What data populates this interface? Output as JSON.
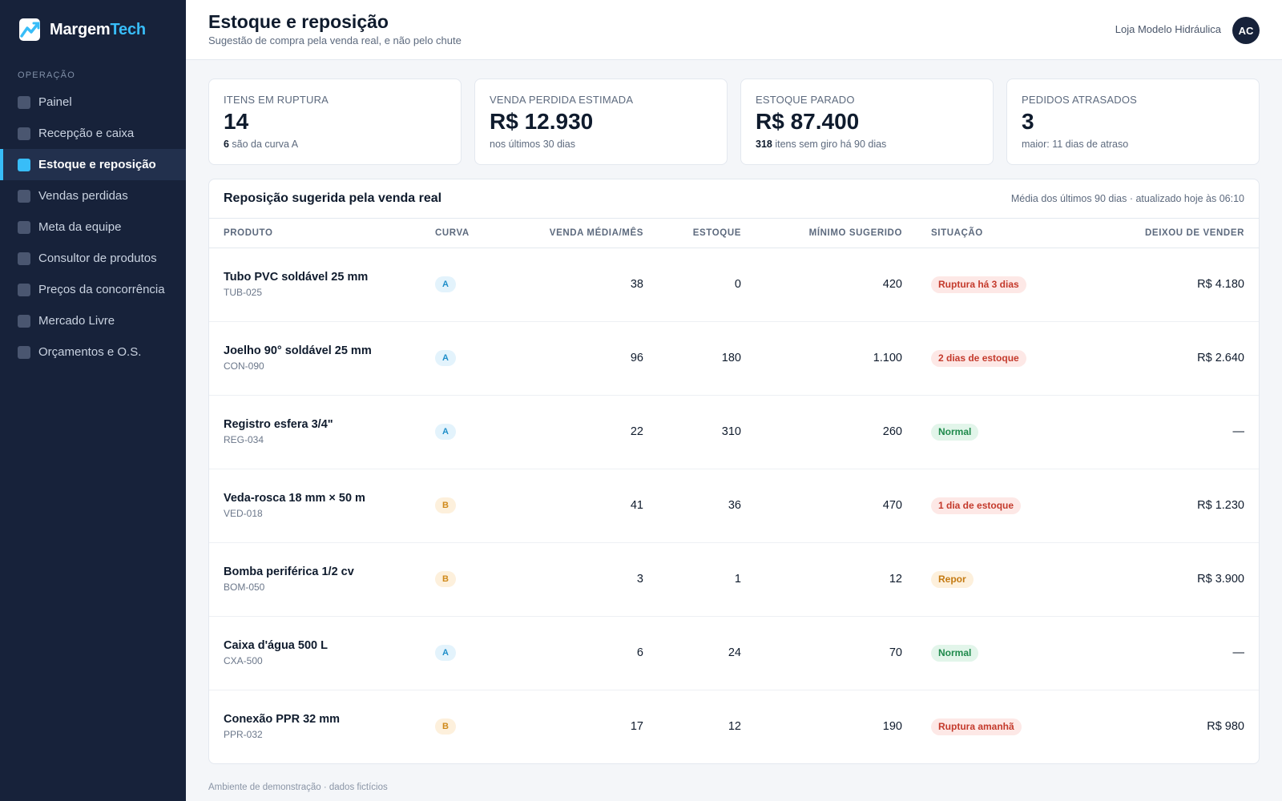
{
  "brand": {
    "name_part1": "Margem",
    "name_part2": "Tech"
  },
  "sidebar": {
    "section": "OPERAÇÃO",
    "items": [
      {
        "label": "Painel",
        "active": false
      },
      {
        "label": "Recepção e caixa",
        "active": false
      },
      {
        "label": "Estoque e reposição",
        "active": true
      },
      {
        "label": "Vendas perdidas",
        "active": false
      },
      {
        "label": "Meta da equipe",
        "active": false
      },
      {
        "label": "Consultor de produtos",
        "active": false
      },
      {
        "label": "Preços da concorrência",
        "active": false
      },
      {
        "label": "Mercado Livre",
        "active": false
      },
      {
        "label": "Orçamentos e O.S.",
        "active": false
      }
    ]
  },
  "header": {
    "title": "Estoque e reposição",
    "subtitle": "Sugestão de compra pela venda real, e não pelo chute",
    "store": "Loja Modelo Hidráulica",
    "avatar": "AC"
  },
  "kpis": [
    {
      "label": "ITENS EM RUPTURA",
      "value": "14",
      "sub_strong": "6",
      "sub": " são da curva A"
    },
    {
      "label": "VENDA PERDIDA ESTIMADA",
      "value": "R$ 12.930",
      "sub_strong": "",
      "sub": "nos últimos 30 dias"
    },
    {
      "label": "ESTOQUE PARADO",
      "value": "R$ 87.400",
      "sub_strong": "318",
      "sub": " itens sem giro há 90 dias"
    },
    {
      "label": "PEDIDOS ATRASADOS",
      "value": "3",
      "sub_strong": "",
      "sub": "maior: 11 dias de atraso"
    }
  ],
  "table": {
    "title": "Reposição sugerida pela venda real",
    "meta": "Média dos últimos 90 dias · atualizado hoje às 06:10",
    "columns": [
      "PRODUTO",
      "CURVA",
      "VENDA MÉDIA/MÊS",
      "ESTOQUE",
      "MÍNIMO SUGERIDO",
      "SITUAÇÃO",
      "DEIXOU DE VENDER"
    ],
    "rows": [
      {
        "name": "Tubo PVC soldável 25 mm",
        "sku": "TUB-025",
        "curva": "A",
        "venda": "38",
        "estoque": "0",
        "minimo": "420",
        "situacao": "Ruptura há 3 dias",
        "status": "danger",
        "deixou": "R$ 4.180"
      },
      {
        "name": "Joelho 90° soldável 25 mm",
        "sku": "CON-090",
        "curva": "A",
        "venda": "96",
        "estoque": "180",
        "minimo": "1.100",
        "situacao": "2 dias de estoque",
        "status": "danger",
        "deixou": "R$ 2.640"
      },
      {
        "name": "Registro esfera 3/4\"",
        "sku": "REG-034",
        "curva": "A",
        "venda": "22",
        "estoque": "310",
        "minimo": "260",
        "situacao": "Normal",
        "status": "ok",
        "deixou": "—"
      },
      {
        "name": "Veda-rosca 18 mm × 50 m",
        "sku": "VED-018",
        "curva": "B",
        "venda": "41",
        "estoque": "36",
        "minimo": "470",
        "situacao": "1 dia de estoque",
        "status": "danger",
        "deixou": "R$ 1.230"
      },
      {
        "name": "Bomba periférica 1/2 cv",
        "sku": "BOM-050",
        "curva": "B",
        "venda": "3",
        "estoque": "1",
        "minimo": "12",
        "situacao": "Repor",
        "status": "warn",
        "deixou": "R$ 3.900"
      },
      {
        "name": "Caixa d'água 500 L",
        "sku": "CXA-500",
        "curva": "A",
        "venda": "6",
        "estoque": "24",
        "minimo": "70",
        "situacao": "Normal",
        "status": "ok",
        "deixou": "—"
      },
      {
        "name": "Conexão PPR 32 mm",
        "sku": "PPR-032",
        "curva": "B",
        "venda": "17",
        "estoque": "12",
        "minimo": "190",
        "situacao": "Ruptura amanhã",
        "status": "danger",
        "deixou": "R$ 980"
      }
    ]
  },
  "footer": "Ambiente de demonstração · dados fictícios",
  "colors": {
    "sidebar_bg": "#17223a",
    "accent": "#38bdf8",
    "danger": "#c43a2c",
    "ok": "#1f8a4c",
    "warn": "#c47a12"
  }
}
